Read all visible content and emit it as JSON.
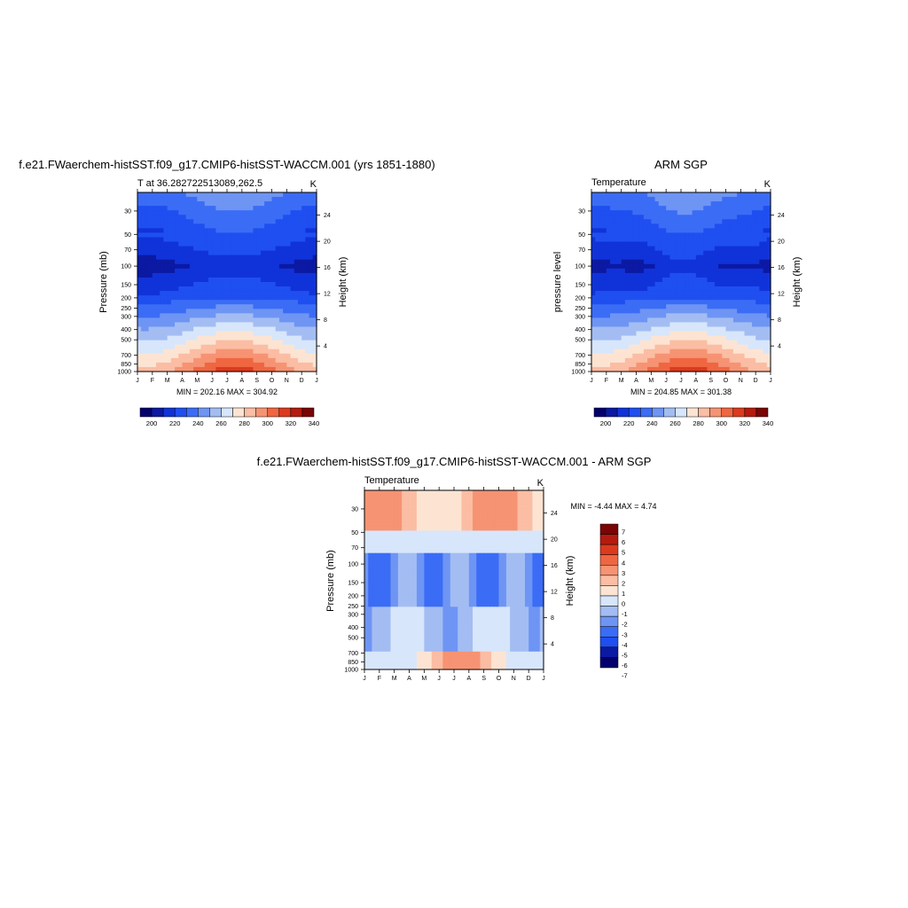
{
  "colors": {
    "abs_scale": [
      "#03006d",
      "#0b19a3",
      "#1033d9",
      "#1f4ff0",
      "#3b6cf5",
      "#6e95f4",
      "#a3bdf3",
      "#d7e6fb",
      "#fde4d2",
      "#fbbda3",
      "#f69373",
      "#ef6641",
      "#dc3a1e",
      "#b51a0f",
      "#7a0505"
    ],
    "diff_scale": [
      "#03006d",
      "#0b19a3",
      "#1f4ff0",
      "#3b6cf5",
      "#6e95f4",
      "#a3bdf3",
      "#d7e6fb",
      "#fde4d2",
      "#fbbda3",
      "#f69373",
      "#ef6641",
      "#dc3a1e",
      "#b51a0f",
      "#7a0505"
    ]
  },
  "panels": {
    "model": {
      "main_title": "f.e21.FWaerchem-histSST.f09_g17.CMIP6-histSST-WACCM.001 (yrs 1851-1880)",
      "left_title": "T at 36.282722513089,262.5",
      "right_title": "K",
      "ylabel": "Pressure (mb)",
      "ylabel_right": "Height (km)",
      "minmax": "MIN = 202.16 MAX = 304.92"
    },
    "obs": {
      "main_title": "ARM SGP",
      "left_title": "Temperature",
      "right_title": "K",
      "ylabel": "pressure level",
      "ylabel_right": "Height (km)",
      "minmax": "MIN = 204.85 MAX = 301.38"
    },
    "diff": {
      "main_title": "f.e21.FWaerchem-histSST.f09_g17.CMIP6-histSST-WACCM.001 - ARM SGP",
      "left_title": "Temperature",
      "right_title": "K",
      "ylabel": "Pressure (mb)",
      "ylabel_right": "Height (km)",
      "minmax": "MIN =  -4.44 MAX =   4.74"
    }
  },
  "chart_data": [
    {
      "type": "heatmap",
      "title": "f.e21.FWaerchem-histSST.f09_g17.CMIP6-histSST-WACCM.001 (yrs 1851-1880)",
      "variable": "T at 36.282722513089,262.5",
      "units": "K",
      "x_ticks": [
        "J",
        "F",
        "M",
        "A",
        "M",
        "J",
        "J",
        "A",
        "S",
        "O",
        "N",
        "D",
        "J"
      ],
      "y_ticks_pressure": [
        30,
        50,
        70,
        100,
        150,
        200,
        250,
        300,
        400,
        500,
        700,
        850,
        1000
      ],
      "y_ticks_height": [
        4,
        8,
        12,
        16,
        20,
        24
      ],
      "ylim": [
        1000,
        20
      ],
      "log_scale_y": true,
      "colorbar_labels": [
        200,
        220,
        240,
        260,
        280,
        300,
        320,
        340
      ],
      "colorbar_levels": [
        195,
        200,
        205,
        210,
        220,
        230,
        240,
        250,
        260,
        270,
        280,
        290,
        300,
        310,
        320,
        330,
        340,
        345
      ],
      "min": 202.16,
      "max": 304.92
    },
    {
      "type": "heatmap",
      "title": "ARM SGP",
      "variable": "Temperature",
      "units": "K",
      "x_ticks": [
        "J",
        "F",
        "M",
        "A",
        "M",
        "J",
        "J",
        "A",
        "S",
        "O",
        "N",
        "D",
        "J"
      ],
      "y_ticks_pressure": [
        30,
        50,
        70,
        100,
        150,
        200,
        250,
        300,
        400,
        500,
        700,
        850,
        1000
      ],
      "y_ticks_height": [
        4,
        8,
        12,
        16,
        20,
        24
      ],
      "ylim": [
        1000,
        20
      ],
      "log_scale_y": true,
      "colorbar_labels": [
        200,
        220,
        240,
        260,
        280,
        300,
        320,
        340
      ],
      "min": 204.85,
      "max": 301.38
    },
    {
      "type": "heatmap",
      "title": "f.e21.FWaerchem-histSST.f09_g17.CMIP6-histSST-WACCM.001 - ARM SGP",
      "variable": "Temperature",
      "units": "K",
      "x_ticks": [
        "J",
        "F",
        "M",
        "A",
        "M",
        "J",
        "J",
        "A",
        "S",
        "O",
        "N",
        "D",
        "J"
      ],
      "y_ticks_pressure": [
        30,
        50,
        70,
        100,
        150,
        200,
        250,
        300,
        400,
        500,
        700,
        850,
        1000
      ],
      "y_ticks_height": [
        4,
        8,
        12,
        16,
        20,
        24
      ],
      "ylim": [
        1000,
        20
      ],
      "log_scale_y": true,
      "colorbar_labels": [
        "7",
        "6",
        "5",
        "4",
        "3",
        "2",
        "1",
        "0",
        "-1",
        "-2",
        "-3",
        "-4",
        "-5",
        "-6",
        "-7"
      ],
      "min": -4.44,
      "max": 4.74
    }
  ]
}
